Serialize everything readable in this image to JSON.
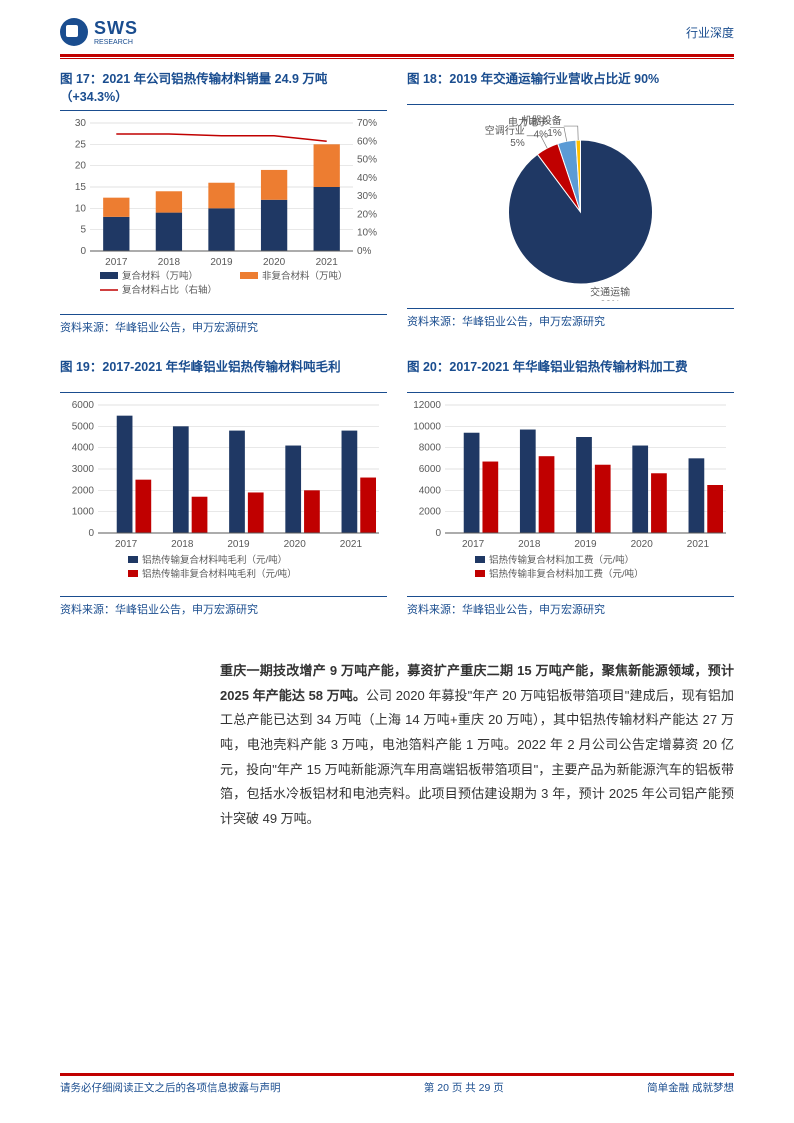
{
  "header": {
    "logo_main": "SWS",
    "logo_sub": "RESEARCH",
    "right_label": "行业深度"
  },
  "fig17": {
    "title": "图 17：2021 年公司铝热传输材料销量 24.9 万吨（+34.3%）",
    "type": "bar_line",
    "categories": [
      "2017",
      "2018",
      "2019",
      "2020",
      "2021"
    ],
    "series": [
      {
        "name": "复合材料（万吨）",
        "type": "bar_stack1",
        "color": "#1f3864",
        "values": [
          8,
          9,
          10,
          12,
          15
        ]
      },
      {
        "name": "非复合材料（万吨）",
        "type": "bar_stack2",
        "color": "#ed7d31",
        "values": [
          4.5,
          5,
          6,
          7,
          10
        ]
      },
      {
        "name": "复合材料占比（右轴）",
        "type": "line",
        "color": "#c00000",
        "values": [
          64,
          64,
          63,
          63,
          60
        ]
      }
    ],
    "y_left": {
      "min": 0,
      "max": 30,
      "step": 5
    },
    "y_right": {
      "min": 0,
      "max": 70,
      "step": 10
    },
    "legend": [
      "复合材料（万吨）",
      "非复合材料（万吨）",
      "复合材料占比（右轴）"
    ],
    "source": "资料来源：华峰铝业公告，申万宏源研究",
    "bg": "#ffffff",
    "grid_color": "#d9d9d9",
    "tick_fontsize": 10
  },
  "fig18": {
    "title": "图 18：2019 年交通运输行业营收占比近 90%",
    "type": "pie",
    "slices": [
      {
        "label": "交通运输",
        "value": 88,
        "color": "#1f3864"
      },
      {
        "label": "空调行业",
        "value": 5,
        "color": "#c00000"
      },
      {
        "label": "电力电子",
        "value": 4,
        "color": "#5b9bd5"
      },
      {
        "label": "机器设备",
        "value": 1,
        "color": "#ffc000"
      }
    ],
    "label_color": "#595959",
    "label_fontsize": 10,
    "source": "资料来源：华峰铝业公告，申万宏源研究"
  },
  "fig19": {
    "title": "图 19：2017-2021 年华峰铝业铝热传输材料吨毛利",
    "type": "bar",
    "categories": [
      "2017",
      "2018",
      "2019",
      "2020",
      "2021"
    ],
    "series": [
      {
        "name": "铝热传输复合材料吨毛利（元/吨）",
        "color": "#1f3864",
        "values": [
          5500,
          5000,
          4800,
          4100,
          4800
        ]
      },
      {
        "name": "铝热传输非复合材料吨毛利（元/吨）",
        "color": "#c00000",
        "values": [
          2500,
          1700,
          1900,
          2000,
          2600
        ]
      }
    ],
    "y": {
      "min": 0,
      "max": 6000,
      "step": 1000
    },
    "source": "资料来源：华峰铝业公告，申万宏源研究",
    "grid_color": "#d9d9d9",
    "tick_fontsize": 10
  },
  "fig20": {
    "title": "图 20：2017-2021 年华峰铝业铝热传输材料加工费",
    "type": "bar",
    "categories": [
      "2017",
      "2018",
      "2019",
      "2020",
      "2021"
    ],
    "series": [
      {
        "name": "铝热传输复合材料加工费（元/吨）",
        "color": "#1f3864",
        "values": [
          9400,
          9700,
          9000,
          8200,
          7000
        ]
      },
      {
        "name": "铝热传输非复合材料加工费（元/吨）",
        "color": "#c00000",
        "values": [
          6700,
          7200,
          6400,
          5600,
          4500
        ]
      }
    ],
    "y": {
      "min": 0,
      "max": 12000,
      "step": 2000
    },
    "source": "资料来源：华峰铝业公告，申万宏源研究",
    "grid_color": "#d9d9d9",
    "tick_fontsize": 10
  },
  "body": {
    "bold_lead": "重庆一期技改增产 9 万吨产能，募资扩产重庆二期 15 万吨产能，聚焦新能源领域，预计 2025 年产能达 58 万吨。",
    "rest": "公司 2020 年募投\"年产 20 万吨铝板带箔项目\"建成后，现有铝加工总产能已达到 34 万吨（上海 14 万吨+重庆 20 万吨），其中铝热传输材料产能达 27 万吨，电池壳料产能 3 万吨，电池箔料产能 1 万吨。2022 年 2 月公司公告定增募资 20 亿元，投向\"年产 15 万吨新能源汽车用高端铝板带箔项目\"，主要产品为新能源汽车的铝板带箔，包括水冷板铝材和电池壳料。此项目预估建设期为 3 年，预计 2025 年公司铝产能预计突破 49 万吨。"
  },
  "footer": {
    "left": "请务必仔细阅读正文之后的各项信息披露与声明",
    "center": "第 20 页 共 29 页",
    "right": "简单金融 成就梦想"
  }
}
